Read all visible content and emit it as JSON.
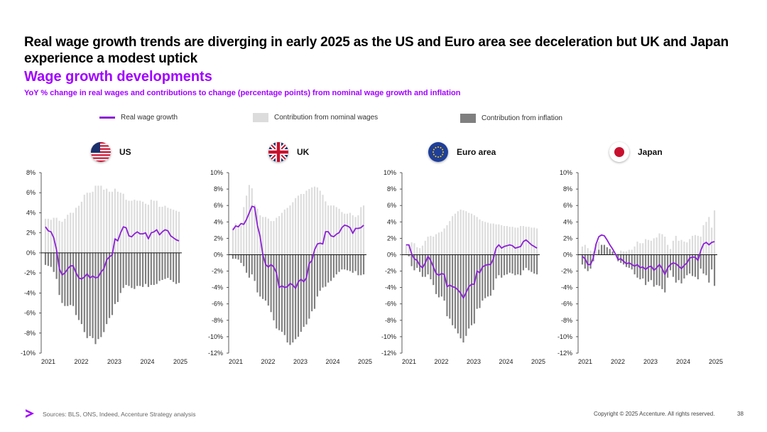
{
  "headline": "Real wage growth trends are diverging in early 2025 as the US and Euro area see deceleration but UK and Japan experience a modest uptick",
  "subtitle": "Wage growth developments",
  "caption": "YoY % change in real wages and contributions to change (percentage points) from nominal wage growth and inflation",
  "legend": {
    "line_label": "Real wage growth",
    "nominal_label": "Contribution from nominal wages",
    "inflation_label": "Contribution from inflation"
  },
  "colors": {
    "accent": "#a100ff",
    "line": "#8c1fd6",
    "nominal": "#dcdcdc",
    "inflation": "#7f7f7f"
  },
  "footer": {
    "sources": "Sources: BLS, ONS, Indeed, Accenture Strategy analysis",
    "copyright": "Copyright © 2025 Accenture. All rights reserved.",
    "page": "38"
  },
  "chart_data": [
    {
      "name": "US",
      "type": "bar+line",
      "ylim": [
        -10,
        8
      ],
      "yticks": [
        8,
        6,
        4,
        2,
        0,
        -2,
        -4,
        -6,
        -8,
        -10
      ],
      "xticks": [
        "2021",
        "2022",
        "2023",
        "2024",
        "2025"
      ],
      "line": [
        2.6,
        2.2,
        2.1,
        1.5,
        0.3,
        -1.6,
        -2.2,
        -2,
        -1.6,
        -1.3,
        -1.3,
        -2,
        -2.5,
        -2.6,
        -2.4,
        -2.1,
        -2.5,
        -2.3,
        -2.5,
        -2.4,
        -1.9,
        -1.6,
        -0.7,
        -0.4,
        -0.2,
        1.4,
        1.2,
        2,
        2.6,
        2.5,
        1.7,
        1.6,
        1.9,
        2.1,
        1.9,
        1.9,
        2,
        1.4,
        2,
        2.1,
        2.3,
        1.8,
        2.1,
        2.3,
        2.2,
        1.7,
        1.5,
        1.3,
        1.2
      ],
      "nominal": [
        3.4,
        3.4,
        3.3,
        3.5,
        3.5,
        3.2,
        3.1,
        3.4,
        3.8,
        4,
        4,
        4.5,
        4.7,
        5.1,
        5.8,
        6,
        6,
        6.1,
        6.7,
        6.7,
        6.7,
        6.3,
        6.4,
        6.1,
        6.1,
        6.4,
        6.1,
        6,
        5.9,
        5.3,
        5.2,
        5.2,
        5.3,
        5.2,
        5.2,
        5.1,
        4.9,
        4.8,
        5.3,
        5.2,
        5.2,
        4.6,
        4.6,
        4.7,
        4.5,
        4.4,
        4.3,
        4.2,
        4.1
      ],
      "inflation": [
        -1.2,
        -1.3,
        -1.4,
        -1.9,
        -2.6,
        -4.2,
        -5,
        -5.3,
        -5.3,
        -5.2,
        -5.3,
        -6.2,
        -6.7,
        -7.1,
        -7.9,
        -8.5,
        -8.3,
        -8.5,
        -9.1,
        -8.6,
        -8.4,
        -7.9,
        -7.1,
        -6.5,
        -6.2,
        -5.1,
        -4.9,
        -4,
        -3.5,
        -3.2,
        -3.3,
        -3.5,
        -3.6,
        -3.3,
        -3.3,
        -3.4,
        -3.1,
        -3.4,
        -3.2,
        -3.2,
        -3.1,
        -2.8,
        -2.7,
        -2.6,
        -2.5,
        -2.7,
        -2.9,
        -3.1,
        -3
      ]
    },
    {
      "name": "UK",
      "type": "bar+line",
      "ylim": [
        -12,
        10
      ],
      "yticks": [
        10,
        8,
        6,
        4,
        2,
        0,
        -2,
        -4,
        -6,
        -8,
        -10,
        -12
      ],
      "xticks": [
        "2021",
        "2022",
        "2023",
        "2024",
        "2025"
      ],
      "line": [
        3,
        3.5,
        3.4,
        3.8,
        3.7,
        4.3,
        5.1,
        5.9,
        5.8,
        3.6,
        2.2,
        0,
        -1.2,
        -1.5,
        -1.2,
        -1.5,
        -2.2,
        -4,
        -3.8,
        -4,
        -3.9,
        -3.5,
        -3.7,
        -4.1,
        -3.3,
        -3,
        -3.3,
        -2.8,
        -1.1,
        -0.7,
        0.6,
        1.3,
        1.4,
        1.3,
        2.8,
        2.8,
        2.3,
        2.2,
        2.5,
        2.7,
        3.3,
        3.6,
        3.5,
        3.3,
        2.6,
        3.2,
        3.2,
        3.3,
        3.6
      ],
      "nominal": [
        3.3,
        3.8,
        3.6,
        3.5,
        5.8,
        7.2,
        8.5,
        8.1,
        6.1,
        5.6,
        4.8,
        4.6,
        4.6,
        4.4,
        4.1,
        4.1,
        4.5,
        4.7,
        5.1,
        5.5,
        5.7,
        6,
        6.4,
        6.9,
        7.2,
        7.4,
        7.4,
        7.8,
        8,
        8.2,
        8.3,
        8.2,
        7.8,
        7.3,
        6.5,
        6,
        6,
        6,
        5.8,
        5.6,
        5.2,
        5,
        5,
        5.1,
        4.8,
        4.6,
        4.8,
        5.8,
        6
      ],
      "inflation": [
        -0.5,
        -0.5,
        -0.6,
        -1,
        -1.4,
        -2.2,
        -2.8,
        -2.4,
        -3.2,
        -4.6,
        -5.1,
        -5.4,
        -5.6,
        -6.2,
        -7,
        -8,
        -9,
        -9.2,
        -9.4,
        -9.8,
        -10.7,
        -11,
        -10.7,
        -10.3,
        -10,
        -9.4,
        -8.8,
        -8.5,
        -7.8,
        -6.9,
        -6.6,
        -5.1,
        -4.4,
        -4,
        -3.9,
        -3.4,
        -3.2,
        -2.8,
        -2.4,
        -2.1,
        -1.8,
        -1.8,
        -1.9,
        -2,
        -2.2,
        -2,
        -2.5,
        -2.5,
        -2.4
      ]
    },
    {
      "name": "Euro area",
      "type": "bar+line",
      "ylim": [
        -12,
        10
      ],
      "yticks": [
        10,
        8,
        6,
        4,
        2,
        0,
        -2,
        -4,
        -6,
        -8,
        -10,
        -12
      ],
      "xticks": [
        "2021",
        "2022",
        "2023",
        "2024",
        "2025"
      ],
      "line": [
        1.2,
        1.2,
        0.1,
        -0.5,
        -0.7,
        -1.3,
        -1.6,
        -1,
        -0.2,
        -0.7,
        -1.5,
        -2.3,
        -2.5,
        -2.3,
        -2.4,
        -3.9,
        -3.7,
        -3.9,
        -4,
        -4.3,
        -4.7,
        -5.3,
        -4.6,
        -3.9,
        -3.6,
        -3.6,
        -2,
        -2.2,
        -1.5,
        -1.3,
        -1.2,
        -1.2,
        -0.5,
        0.8,
        1.2,
        0.8,
        1,
        1.1,
        1.2,
        1.1,
        0.8,
        0.9,
        1,
        1.6,
        1.8,
        1.5,
        1.2,
        1,
        0.8
      ],
      "nominal": [
        1.3,
        1.1,
        1.5,
        1.4,
        0.9,
        0.8,
        1.1,
        1.7,
        2.2,
        2.3,
        2.2,
        2.5,
        2.7,
        2.8,
        3.2,
        3.6,
        4.1,
        4.7,
        5,
        5.3,
        5.5,
        5.4,
        5.3,
        5.1,
        5,
        4.8,
        4.6,
        4.3,
        4.1,
        4,
        3.9,
        3.8,
        3.8,
        3.7,
        3.7,
        3.6,
        3.5,
        3.5,
        3.4,
        3.4,
        3.3,
        3.3,
        3.5,
        3.5,
        3.4,
        3.4,
        3.3,
        3.3,
        3.2
      ],
      "inflation": [
        0,
        -0.2,
        -1.4,
        -1.9,
        -1.6,
        -2.1,
        -2.7,
        -2.7,
        -2.4,
        -3,
        -3.7,
        -4.8,
        -5.2,
        -5.1,
        -5.6,
        -7.5,
        -7.8,
        -8.6,
        -9,
        -9.6,
        -10.2,
        -10.7,
        -9.9,
        -9,
        -8.6,
        -8.4,
        -6.6,
        -6.5,
        -5.6,
        -5.3,
        -5.1,
        -5,
        -4.3,
        -2.9,
        -2.5,
        -2.8,
        -2.5,
        -2.4,
        -2.2,
        -2.3,
        -2.5,
        -2.4,
        -2.5,
        -1.9,
        -1.6,
        -1.9,
        -2.1,
        -2.3,
        -2.4
      ]
    },
    {
      "name": "Japan",
      "type": "bar+line",
      "ylim": [
        -12,
        10
      ],
      "yticks": [
        10,
        8,
        6,
        4,
        2,
        0,
        -2,
        -4,
        -6,
        -8,
        -10,
        -12
      ],
      "xticks": [
        "2021",
        "2022",
        "2023",
        "2024",
        "2025"
      ],
      "line": [
        -0.2,
        -0.5,
        -1.2,
        -1.2,
        -0.4,
        1.3,
        2.2,
        2.4,
        2.3,
        1.8,
        1.2,
        0.7,
        0.1,
        -0.6,
        -0.5,
        -0.8,
        -1.1,
        -1,
        -1.2,
        -1.4,
        -1.2,
        -1.6,
        -1.5,
        -1.8,
        -1.5,
        -1.4,
        -1.9,
        -1.6,
        -1.2,
        -1.7,
        -2.4,
        -1.6,
        -1.2,
        -1,
        -1.1,
        -1.4,
        -1.7,
        -1.3,
        -1,
        -0.4,
        -0.3,
        -0.3,
        -0.7,
        0.5,
        1.3,
        1.5,
        1.2,
        1.5,
        1.6
      ],
      "nominal": [
        1,
        1.2,
        0.8,
        0.5,
        0.4,
        1.3,
        1.6,
        1.1,
        1.1,
        0.9,
        0.5,
        0.3,
        0.1,
        0.2,
        0.5,
        0.4,
        0.4,
        0.6,
        0.6,
        1,
        1.6,
        1.4,
        1.4,
        1.9,
        1.8,
        1.7,
        2,
        2.1,
        2.6,
        2.5,
        2.2,
        1.2,
        0.7,
        1.7,
        2.3,
        1.7,
        1.8,
        1.6,
        1.5,
        1.9,
        2.3,
        2.4,
        2.3,
        2.2,
        3.6,
        4,
        4.6,
        3.3,
        5.4
      ],
      "inflation": [
        -1.2,
        -1.7,
        -2,
        -1.7,
        -0.8,
        0,
        0.6,
        1.2,
        1.2,
        0.9,
        0.7,
        0.4,
        0,
        -0.8,
        -1,
        -1.2,
        -1.5,
        -1.6,
        -1.8,
        -2.4,
        -2.8,
        -3,
        -2.9,
        -3.7,
        -3.3,
        -3.1,
        -3.9,
        -3.7,
        -3.8,
        -4.2,
        -4.6,
        -2.8,
        -1.9,
        -2.7,
        -3.4,
        -3.1,
        -3.5,
        -2.9,
        -2.5,
        -2.3,
        -2.6,
        -2.7,
        -3,
        -1.7,
        -2.3,
        -2.5,
        -3.4,
        -1.8,
        -3.8
      ]
    }
  ]
}
